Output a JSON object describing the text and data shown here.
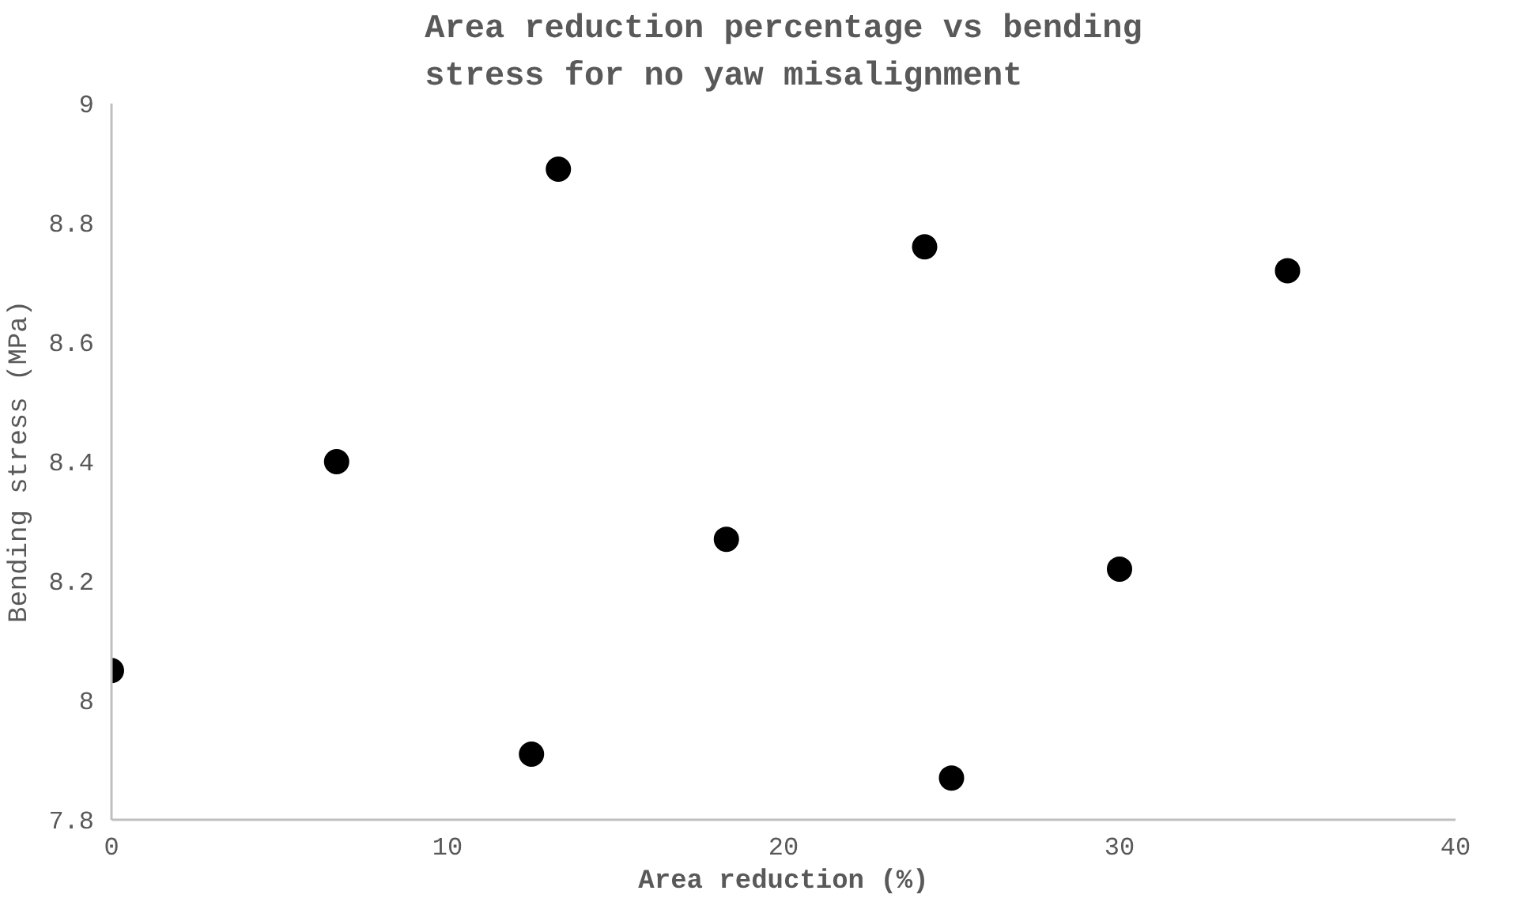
{
  "chart_data": {
    "type": "scatter",
    "title": "Area reduction percentage vs bending\nstress for no yaw misalignment",
    "xlabel": "Area reduction (%)",
    "ylabel": "Bending stress (MPa)",
    "x": [
      0,
      6.7,
      13.3,
      12.5,
      18.3,
      24.2,
      25,
      30,
      35
    ],
    "series": [
      {
        "color": "#000000",
        "values": [
          8.05,
          8.4,
          8.89,
          7.91,
          8.27,
          8.76,
          7.87,
          8.22,
          8.72
        ]
      }
    ],
    "xlim": [
      0,
      40
    ],
    "xticks": [
      0,
      10,
      20,
      30,
      40
    ],
    "ylim": [
      7.8,
      9
    ],
    "yticks": [
      7.8,
      8,
      8.2,
      8.4,
      8.6,
      8.8,
      9
    ],
    "grid": false,
    "marker": "circle"
  }
}
